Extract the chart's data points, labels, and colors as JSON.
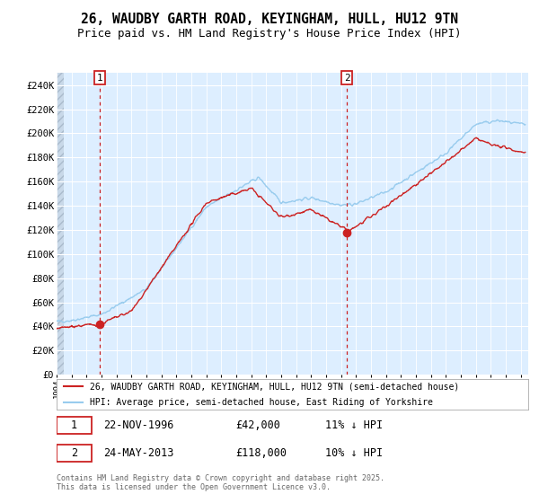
{
  "title": "26, WAUDBY GARTH ROAD, KEYINGHAM, HULL, HU12 9TN",
  "subtitle": "Price paid vs. HM Land Registry's House Price Index (HPI)",
  "ylim": [
    0,
    250000
  ],
  "yticks": [
    0,
    20000,
    40000,
    60000,
    80000,
    100000,
    120000,
    140000,
    160000,
    180000,
    200000,
    220000,
    240000
  ],
  "ytick_labels": [
    "£0",
    "£20K",
    "£40K",
    "£60K",
    "£80K",
    "£100K",
    "£120K",
    "£140K",
    "£160K",
    "£180K",
    "£200K",
    "£220K",
    "£240K"
  ],
  "xticks": [
    1994,
    1995,
    1996,
    1997,
    1998,
    1999,
    2000,
    2001,
    2002,
    2003,
    2004,
    2005,
    2006,
    2007,
    2008,
    2009,
    2010,
    2011,
    2012,
    2013,
    2014,
    2015,
    2016,
    2017,
    2018,
    2019,
    2020,
    2021,
    2022,
    2023,
    2024,
    2025
  ],
  "sale1_x": 1996.9,
  "sale1_y": 42000,
  "sale1_label": "1",
  "sale1_date": "22-NOV-1996",
  "sale1_price": "£42,000",
  "sale1_hpi": "11% ↓ HPI",
  "sale2_x": 2013.4,
  "sale2_y": 118000,
  "sale2_label": "2",
  "sale2_date": "24-MAY-2013",
  "sale2_price": "£118,000",
  "sale2_hpi": "10% ↓ HPI",
  "line_red_color": "#cc2222",
  "line_blue_color": "#99ccee",
  "sale_box_color": "#cc2222",
  "vline_color": "#cc2222",
  "bg_chart_color": "#ddeeff",
  "grid_color": "#ffffff",
  "legend_line1": "26, WAUDBY GARTH ROAD, KEYINGHAM, HULL, HU12 9TN (semi-detached house)",
  "legend_line2": "HPI: Average price, semi-detached house, East Riding of Yorkshire",
  "footer": "Contains HM Land Registry data © Crown copyright and database right 2025.\nThis data is licensed under the Open Government Licence v3.0.",
  "title_fontsize": 10.5,
  "subtitle_fontsize": 9
}
